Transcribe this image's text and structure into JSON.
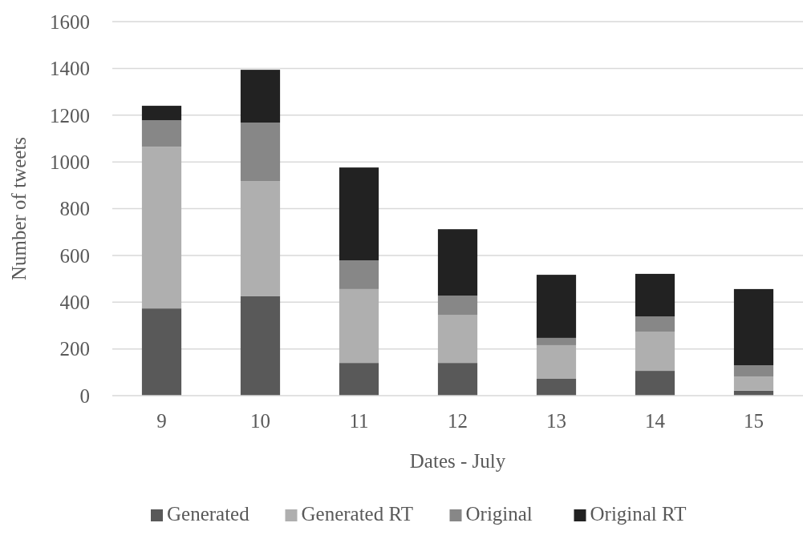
{
  "chart_data": {
    "type": "bar",
    "stacked": true,
    "xlabel": "Dates - July",
    "ylabel": "Number of tweets",
    "categories": [
      "9",
      "10",
      "11",
      "12",
      "13",
      "14",
      "15"
    ],
    "series": [
      {
        "name": "Generated",
        "color": "#595959",
        "values": [
          373,
          425,
          140,
          140,
          72,
          106,
          21
        ]
      },
      {
        "name": "Generated RT",
        "color": "#afafaf",
        "values": [
          692,
          493,
          316,
          206,
          144,
          168,
          61
        ]
      },
      {
        "name": "Original",
        "color": "#878787",
        "values": [
          113,
          250,
          123,
          82,
          31,
          65,
          48
        ]
      },
      {
        "name": "Original RT",
        "color": "#222222",
        "values": [
          62,
          226,
          397,
          284,
          270,
          182,
          326
        ]
      }
    ],
    "ylim": [
      0,
      1600
    ],
    "yticks": [
      0,
      200,
      400,
      600,
      800,
      1000,
      1200,
      1400,
      1600
    ],
    "grid": "y",
    "legend": "bottom"
  }
}
